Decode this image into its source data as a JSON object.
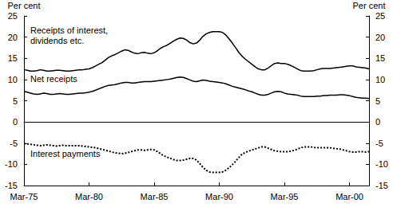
{
  "chart_data": {
    "type": "line",
    "y_label": "Per cent",
    "y2_label": "Per cent",
    "categories": [
      "Mar-75",
      null,
      null,
      null,
      null,
      null,
      null,
      null,
      null,
      null,
      null,
      null,
      null,
      null,
      null,
      null,
      null,
      null,
      null,
      null,
      "Mar-80",
      null,
      null,
      null,
      null,
      null,
      null,
      null,
      null,
      null,
      null,
      null,
      null,
      null,
      null,
      null,
      null,
      null,
      null,
      null,
      "Mar-85",
      null,
      null,
      null,
      null,
      null,
      null,
      null,
      null,
      null,
      null,
      null,
      null,
      null,
      null,
      null,
      null,
      null,
      null,
      null,
      "Mar-90",
      null,
      null,
      null,
      null,
      null,
      null,
      null,
      null,
      null,
      null,
      null,
      null,
      null,
      null,
      null,
      null,
      null,
      null,
      null,
      "Mar-95",
      null,
      null,
      null,
      null,
      null,
      null,
      null,
      null,
      null,
      null,
      null,
      null,
      null,
      null,
      null,
      null,
      null,
      null,
      null,
      "Mar-00",
      null,
      null,
      null,
      null,
      null,
      null
    ],
    "series": [
      {
        "name": "Receipts of interest, dividends etc.",
        "color": "#000000",
        "line_style": "solid",
        "values": [
          12.3,
          12.2,
          12.0,
          12.0,
          12.1,
          12.3,
          12.2,
          12.0,
          12.0,
          12.1,
          12.2,
          12.2,
          12.1,
          12.0,
          12.0,
          12.1,
          12.2,
          12.3,
          12.3,
          12.4,
          12.5,
          12.8,
          13.2,
          13.6,
          14.0,
          14.6,
          15.2,
          15.6,
          15.9,
          16.3,
          16.7,
          17.0,
          16.9,
          16.5,
          16.2,
          16.1,
          16.3,
          16.4,
          16.2,
          16.1,
          16.3,
          16.8,
          17.4,
          17.8,
          18.1,
          18.6,
          19.1,
          19.5,
          19.8,
          19.7,
          19.3,
          18.7,
          18.4,
          18.6,
          19.3,
          20.2,
          20.8,
          21.1,
          21.3,
          21.3,
          21.3,
          21.1,
          20.5,
          19.6,
          18.6,
          17.5,
          16.4,
          15.5,
          14.8,
          14.2,
          13.6,
          13.0,
          12.5,
          12.3,
          12.3,
          12.7,
          13.3,
          13.8,
          13.9,
          13.8,
          13.8,
          13.6,
          13.3,
          12.9,
          12.5,
          12.1,
          12.0,
          12.0,
          12.0,
          12.1,
          12.3,
          12.5,
          12.6,
          12.6,
          12.6,
          12.7,
          12.8,
          12.9,
          13.0,
          13.1,
          13.2,
          13.2,
          13.0,
          12.9,
          12.8,
          12.7,
          12.5
        ]
      },
      {
        "name": "Net receipts",
        "color": "#000000",
        "line_style": "solid",
        "values": [
          7.2,
          7.0,
          6.8,
          6.6,
          6.5,
          6.6,
          6.8,
          6.7,
          6.5,
          6.5,
          6.6,
          6.7,
          6.6,
          6.5,
          6.5,
          6.6,
          6.7,
          6.8,
          6.8,
          6.9,
          7.0,
          7.2,
          7.5,
          7.8,
          8.1,
          8.4,
          8.6,
          8.7,
          8.8,
          9.0,
          9.2,
          9.3,
          9.3,
          9.2,
          9.2,
          9.3,
          9.4,
          9.5,
          9.5,
          9.5,
          9.6,
          9.7,
          9.8,
          9.9,
          10.0,
          10.1,
          10.3,
          10.5,
          10.6,
          10.5,
          10.2,
          9.9,
          9.6,
          9.5,
          9.7,
          9.9,
          9.8,
          9.6,
          9.5,
          9.4,
          9.3,
          9.2,
          9.0,
          8.7,
          8.4,
          8.2,
          8.0,
          7.8,
          7.6,
          7.3,
          7.1,
          6.8,
          6.5,
          6.3,
          6.3,
          6.5,
          6.8,
          7.1,
          7.2,
          7.1,
          6.8,
          6.6,
          6.5,
          6.4,
          6.3,
          6.1,
          6.0,
          6.0,
          6.0,
          6.0,
          6.1,
          6.1,
          6.2,
          6.2,
          6.3,
          6.3,
          6.3,
          6.4,
          6.4,
          6.3,
          6.2,
          6.0,
          5.8,
          5.7,
          5.6,
          5.6,
          5.5
        ]
      },
      {
        "name": "Interest payments",
        "color": "#000000",
        "line_style": "dotted",
        "values": [
          -5.1,
          -5.2,
          -5.3,
          -5.4,
          -5.5,
          -5.6,
          -5.5,
          -5.4,
          -5.5,
          -5.6,
          -5.7,
          -5.6,
          -5.5,
          -5.6,
          -5.6,
          -5.6,
          -5.6,
          -5.6,
          -5.7,
          -5.8,
          -5.9,
          -6.0,
          -6.1,
          -6.3,
          -6.5,
          -6.7,
          -6.9,
          -7.1,
          -7.3,
          -7.4,
          -7.5,
          -7.4,
          -7.2,
          -7.0,
          -6.8,
          -6.6,
          -6.6,
          -6.7,
          -6.6,
          -6.5,
          -6.6,
          -7.0,
          -7.5,
          -8.0,
          -8.3,
          -8.6,
          -8.9,
          -9.1,
          -9.1,
          -9.0,
          -8.8,
          -8.6,
          -8.6,
          -9.0,
          -9.8,
          -10.7,
          -11.4,
          -11.8,
          -11.9,
          -11.9,
          -11.9,
          -11.8,
          -11.4,
          -10.8,
          -10.1,
          -9.3,
          -8.4,
          -7.6,
          -7.2,
          -6.9,
          -6.6,
          -6.4,
          -6.1,
          -5.9,
          -5.9,
          -6.2,
          -6.5,
          -6.8,
          -6.9,
          -7.0,
          -7.0,
          -7.0,
          -6.9,
          -6.7,
          -6.4,
          -6.1,
          -5.9,
          -5.9,
          -5.9,
          -6.0,
          -6.1,
          -6.1,
          -6.1,
          -6.1,
          -6.1,
          -6.2,
          -6.3,
          -6.4,
          -6.6,
          -6.8,
          -7.0,
          -7.1,
          -7.1,
          -7.0,
          -7.0,
          -7.1,
          -7.0
        ]
      }
    ],
    "ylim": [
      -15,
      25
    ],
    "yticks": [
      -15,
      -10,
      -5,
      0,
      5,
      10,
      15,
      20,
      25
    ],
    "y2lim": [
      -15,
      25
    ],
    "y2ticks": [
      -15,
      -10,
      -5,
      0,
      5,
      10,
      15,
      20,
      25
    ],
    "grid": false
  }
}
